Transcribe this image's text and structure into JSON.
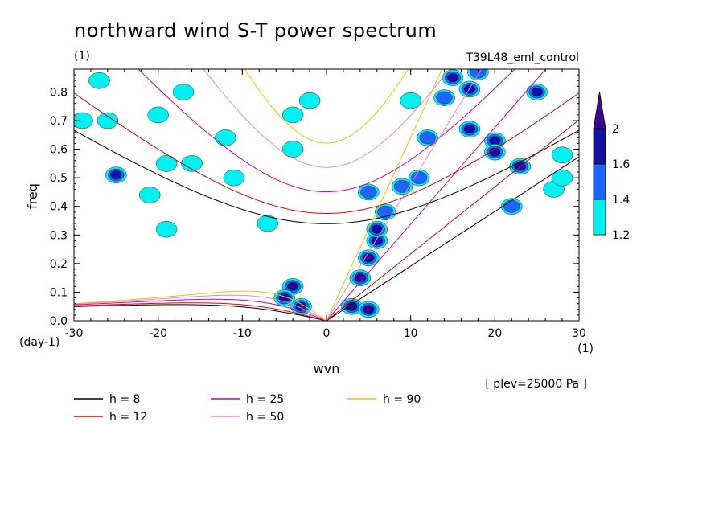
{
  "chart_data": {
    "type": "contour",
    "title": "northward wind S-T power spectrum",
    "units_label": "(1)",
    "run_label": "T39L48_eml_control",
    "xlabel": "wvn",
    "ylabel": "freq",
    "x_units": "(1)",
    "y_units": "(day-1)",
    "plev_label": "[ plev=25000 Pa ]",
    "xlim": [
      -30,
      30
    ],
    "ylim": [
      0,
      0.88
    ],
    "xticks": [
      "-30",
      "-20",
      "-10",
      "0",
      "10",
      "20",
      "30"
    ],
    "xtick_values": [
      -30,
      -20,
      -10,
      0,
      10,
      20,
      30
    ],
    "yticks": [
      "0.0",
      "0.1",
      "0.2",
      "0.3",
      "0.4",
      "0.5",
      "0.6",
      "0.7",
      "0.8"
    ],
    "ytick_values": [
      0,
      0.1,
      0.2,
      0.3,
      0.4,
      0.5,
      0.6,
      0.7,
      0.8
    ],
    "colorbar": {
      "levels": [
        "1.2",
        "1.4",
        "1.6",
        "2"
      ],
      "level_values": [
        1.2,
        1.4,
        1.6,
        2.0
      ],
      "colors": [
        "#00f0f0",
        "#1e64ff",
        "#1410a0",
        "#3c0a8c"
      ]
    },
    "dispersion_curves": [
      {
        "label": "h =  8",
        "h": 8,
        "color": "#000000"
      },
      {
        "label": "h = 12",
        "h": 12,
        "color": "#dd0000"
      },
      {
        "label": "h = 25",
        "h": 25,
        "color": "#cc00aa"
      },
      {
        "label": "h = 50",
        "h": 50,
        "color": "#dd88dd"
      },
      {
        "label": "h = 90",
        "h": 90,
        "color": "#f0c000"
      }
    ],
    "contour_blobs": [
      {
        "x": -4,
        "y": 0.12,
        "level": 2
      },
      {
        "x": -3,
        "y": 0.05,
        "level": 2
      },
      {
        "x": -5,
        "y": 0.08,
        "level": 1.6
      },
      {
        "x": 3,
        "y": 0.05,
        "level": 2
      },
      {
        "x": 5,
        "y": 0.04,
        "level": 2
      },
      {
        "x": 4,
        "y": 0.15,
        "level": 2
      },
      {
        "x": 5,
        "y": 0.22,
        "level": 2
      },
      {
        "x": 6,
        "y": 0.28,
        "level": 1.6
      },
      {
        "x": 6,
        "y": 0.32,
        "level": 1.6
      },
      {
        "x": 7,
        "y": 0.38,
        "level": 1.4
      },
      {
        "x": 5,
        "y": 0.45,
        "level": 1.4
      },
      {
        "x": 9,
        "y": 0.47,
        "level": 1.4
      },
      {
        "x": 12,
        "y": 0.64,
        "level": 1.4
      },
      {
        "x": 17,
        "y": 0.67,
        "level": 1.6
      },
      {
        "x": 20,
        "y": 0.63,
        "level": 1.6
      },
      {
        "x": 23,
        "y": 0.54,
        "level": 1.6
      },
      {
        "x": 25,
        "y": 0.8,
        "level": 1.6
      },
      {
        "x": 17,
        "y": 0.81,
        "level": 1.6
      },
      {
        "x": 20,
        "y": 0.59,
        "level": 1.6
      },
      {
        "x": 15,
        "y": 0.85,
        "level": 1.6
      },
      {
        "x": 14,
        "y": 0.78,
        "level": 1.4
      },
      {
        "x": 18,
        "y": 0.87,
        "level": 1.4
      },
      {
        "x": -25,
        "y": 0.51,
        "level": 1.6
      },
      {
        "x": -26,
        "y": 0.7,
        "level": 1.2
      },
      {
        "x": -20,
        "y": 0.72,
        "level": 1.2
      },
      {
        "x": -29,
        "y": 0.7,
        "level": 1.2
      },
      {
        "x": -19,
        "y": 0.32,
        "level": 1.2
      },
      {
        "x": -11,
        "y": 0.5,
        "level": 1.2
      },
      {
        "x": -12,
        "y": 0.64,
        "level": 1.2
      },
      {
        "x": -21,
        "y": 0.44,
        "level": 1.2
      },
      {
        "x": -19,
        "y": 0.55,
        "level": 1.2
      },
      {
        "x": -27,
        "y": 0.84,
        "level": 1.2
      },
      {
        "x": -17,
        "y": 0.8,
        "level": 1.2
      },
      {
        "x": -2,
        "y": 0.77,
        "level": 1.2
      },
      {
        "x": -4,
        "y": 0.6,
        "level": 1.2
      },
      {
        "x": -7,
        "y": 0.34,
        "level": 1.2
      },
      {
        "x": -16,
        "y": 0.55,
        "level": 1.2
      },
      {
        "x": -4,
        "y": 0.72,
        "level": 1.2
      },
      {
        "x": 22,
        "y": 0.4,
        "level": 1.4
      },
      {
        "x": 27,
        "y": 0.46,
        "level": 1.2
      },
      {
        "x": 11,
        "y": 0.5,
        "level": 1.4
      },
      {
        "x": 28,
        "y": 0.5,
        "level": 1.2
      },
      {
        "x": 28,
        "y": 0.58,
        "level": 1.2
      },
      {
        "x": 10,
        "y": 0.77,
        "level": 1.2
      }
    ]
  },
  "legend": {
    "entries": [
      "h =  8",
      "h = 12",
      "h = 25",
      "h = 50",
      "h = 90"
    ]
  }
}
